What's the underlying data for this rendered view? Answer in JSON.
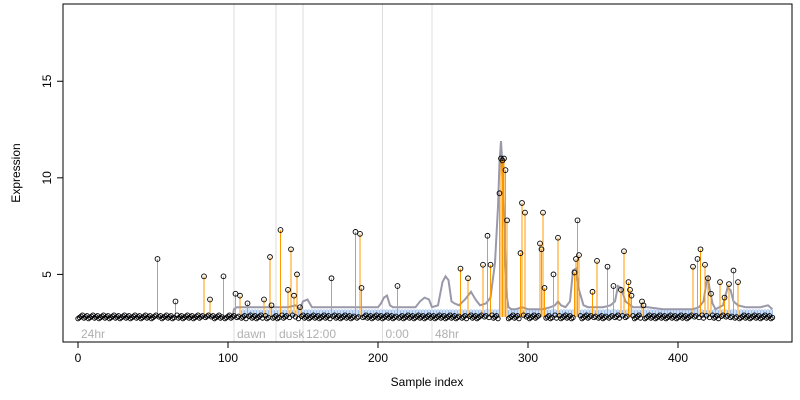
{
  "chart_data": {
    "type": "line",
    "title": "",
    "xlabel": "Sample index",
    "ylabel": "Expression",
    "xlim": [
      -10,
      476
    ],
    "ylim": [
      1.5,
      19.0
    ],
    "x_ticks": [
      0,
      100,
      200,
      300,
      400
    ],
    "y_ticks": [
      5,
      10,
      15
    ],
    "baseline": 2.8,
    "grid": false,
    "legend": "none",
    "colors": {
      "axis": "#000000",
      "region_line": "#dddddd",
      "region_text": "#b0b0b0",
      "stem": "#ff9900",
      "smooth_line": "#9999aa",
      "bars": "#99bbee",
      "points_stroke": "#000000"
    },
    "regions": [
      {
        "label": "24hr",
        "x": 0
      },
      {
        "label": "dawn",
        "x": 104
      },
      {
        "label": "dusk",
        "x": 132
      },
      {
        "label": "12:00",
        "x": 150
      },
      {
        "label": "0:00",
        "x": 203
      },
      {
        "label": "48hr",
        "x": 236
      }
    ],
    "smooth_series": {
      "name": "",
      "x": [
        0,
        50,
        100,
        103,
        104,
        106,
        120,
        140,
        145,
        148,
        150,
        153,
        156,
        170,
        190,
        200,
        202,
        204,
        206,
        208,
        210,
        225,
        228,
        231,
        234,
        236,
        240,
        243,
        245,
        247,
        249,
        251,
        254,
        258,
        262,
        265,
        268,
        272,
        275,
        278,
        280,
        281,
        282,
        283,
        284,
        285,
        286,
        287,
        289,
        292,
        296,
        300,
        305,
        310,
        315,
        318,
        320,
        322,
        325,
        328,
        330,
        332,
        334,
        337,
        340,
        345,
        350,
        355,
        358,
        360,
        362,
        365,
        370,
        380,
        390,
        400,
        410,
        414,
        417,
        419,
        420,
        421,
        423,
        425,
        430,
        433,
        435,
        437,
        440,
        445,
        450,
        455,
        460,
        463
      ],
      "values": [
        2.8,
        2.8,
        2.8,
        2.8,
        3.2,
        3.3,
        3.3,
        3.3,
        3.4,
        3.2,
        3.6,
        3.7,
        3.3,
        3.3,
        3.3,
        3.3,
        3.5,
        3.8,
        3.9,
        3.4,
        3.3,
        3.3,
        3.6,
        3.8,
        3.7,
        3.3,
        3.4,
        4.6,
        4.9,
        4.7,
        3.6,
        3.5,
        3.4,
        3.7,
        4.1,
        3.7,
        3.4,
        3.5,
        3.8,
        5.6,
        8.5,
        10.8,
        11.9,
        10.6,
        8.2,
        5.5,
        3.8,
        3.3,
        3.2,
        3.2,
        3.3,
        3.2,
        3.2,
        3.2,
        3.3,
        3.4,
        3.6,
        3.4,
        3.3,
        3.6,
        5.2,
        5.3,
        4.2,
        3.4,
        3.3,
        3.3,
        3.3,
        3.4,
        3.6,
        4.4,
        4.3,
        3.6,
        3.3,
        3.3,
        3.2,
        3.2,
        3.2,
        3.3,
        3.6,
        4.6,
        4.8,
        4.3,
        3.5,
        3.2,
        3.4,
        4.3,
        4.2,
        3.6,
        3.4,
        3.3,
        3.3,
        3.3,
        3.4,
        3.2
      ]
    },
    "bar_series": {
      "name": "",
      "x_start": 108,
      "x_end": 463,
      "step": 1,
      "value": 3.15
    },
    "stems": {
      "x": [
        53,
        65,
        84,
        88,
        97,
        105,
        108,
        113,
        124,
        128,
        129,
        135,
        140,
        142,
        144,
        146,
        148,
        169,
        185,
        188,
        189,
        213,
        255,
        260,
        270,
        273,
        275,
        281,
        282,
        283,
        284,
        285,
        286,
        295,
        296,
        298,
        308,
        309,
        310,
        311,
        317,
        320,
        331,
        332,
        333,
        334,
        343,
        346,
        353,
        357,
        362,
        364,
        367,
        368,
        369,
        376,
        377,
        410,
        413,
        415,
        418,
        420,
        422,
        428,
        431,
        434,
        437,
        440
      ],
      "values": [
        5.8,
        3.6,
        4.9,
        3.7,
        4.9,
        4.0,
        3.9,
        3.5,
        3.7,
        5.9,
        3.4,
        7.3,
        4.2,
        6.3,
        3.9,
        5.0,
        3.3,
        4.8,
        7.2,
        7.1,
        4.3,
        4.4,
        5.3,
        4.8,
        5.5,
        7.0,
        5.5,
        9.2,
        11.0,
        10.9,
        11.0,
        10.4,
        7.8,
        6.1,
        8.7,
        8.2,
        6.6,
        6.3,
        8.2,
        4.3,
        5.0,
        6.9,
        5.1,
        5.8,
        7.8,
        6.0,
        4.1,
        5.7,
        5.4,
        4.4,
        4.2,
        6.2,
        4.6,
        4.2,
        3.9,
        3.6,
        3.4,
        5.4,
        5.8,
        6.3,
        5.5,
        4.8,
        4.0,
        4.6,
        3.8,
        4.5,
        5.2,
        4.6
      ]
    },
    "points": {
      "x_start": 0,
      "x_end": 463,
      "baseline_value": 2.8
    }
  }
}
